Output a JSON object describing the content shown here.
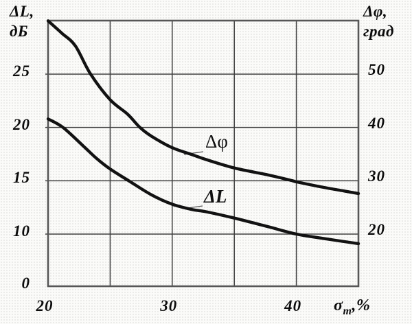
{
  "figure": {
    "left_axis_title_line1": "ΔL,",
    "left_axis_title_line2": "дБ",
    "right_axis_title_line1": "Δφ,",
    "right_axis_title_line2": "град",
    "x_title": {
      "sym": "σ",
      "sub": "m",
      "rest": ",%"
    }
  },
  "colors": {
    "curve": "#121212",
    "grid": "#3f3f3f",
    "frame": "#565656",
    "text": "#0b0b0b",
    "paper": "#fbfbf9"
  },
  "chart_data": {
    "type": "line",
    "title": "",
    "x_axis": {
      "label": "σm, %",
      "range": [
        20,
        45
      ],
      "ticks": [
        {
          "label": "20",
          "value": 20
        },
        {
          "label": "30",
          "value": 30
        },
        {
          "label": "40",
          "value": 40
        }
      ],
      "gridlines": [
        25,
        30,
        35,
        40
      ]
    },
    "y_left": {
      "label": "ΔL, дБ",
      "range": [
        0,
        30
      ],
      "broken_below": 10,
      "ticks": [
        {
          "label": "25",
          "value": 25
        },
        {
          "label": "20",
          "value": 20
        },
        {
          "label": "15",
          "value": 15
        },
        {
          "label": "10",
          "value": 10
        },
        {
          "label": "0",
          "value": 0
        }
      ],
      "gridlines": [
        25,
        20,
        15,
        10
      ]
    },
    "y_right": {
      "label": "Δφ, град",
      "range": [
        20,
        60
      ],
      "ticks": [
        {
          "label": "50",
          "value": 50
        },
        {
          "label": "40",
          "value": 40
        },
        {
          "label": "30",
          "value": 30
        },
        {
          "label": "20",
          "value": 20
        }
      ]
    },
    "series": [
      {
        "name": "Δφ",
        "axis": "right",
        "unit": "град",
        "points": [
          [
            20,
            60
          ],
          [
            21.1,
            57.7
          ],
          [
            22.2,
            55.3
          ],
          [
            23.4,
            50.1
          ],
          [
            25,
            45.2
          ],
          [
            26.4,
            42.5
          ],
          [
            27.4,
            40
          ],
          [
            28.3,
            38.4
          ],
          [
            30,
            36.2
          ],
          [
            31.6,
            34.9
          ],
          [
            32.7,
            34
          ],
          [
            35,
            32.4
          ],
          [
            37.7,
            31.1
          ],
          [
            39.7,
            30
          ],
          [
            40,
            29.8
          ],
          [
            42.1,
            28.8
          ],
          [
            43.8,
            28.1
          ],
          [
            45,
            27.6
          ]
        ]
      },
      {
        "name": "ΔL",
        "axis": "left",
        "unit": "дБ",
        "points": [
          [
            20,
            20.8
          ],
          [
            21.2,
            20
          ],
          [
            22.8,
            18.3
          ],
          [
            23.9,
            17.1
          ],
          [
            25,
            16.1
          ],
          [
            26.5,
            15
          ],
          [
            28.3,
            13.7
          ],
          [
            30,
            12.8
          ],
          [
            31.6,
            12.3
          ],
          [
            32.7,
            12.1
          ],
          [
            35,
            11.5
          ],
          [
            37.7,
            10.7
          ],
          [
            40,
            10
          ],
          [
            42.1,
            9.6
          ],
          [
            45,
            9.1
          ]
        ]
      }
    ],
    "legend": "inline curve labels with leader lines",
    "grid": true
  }
}
